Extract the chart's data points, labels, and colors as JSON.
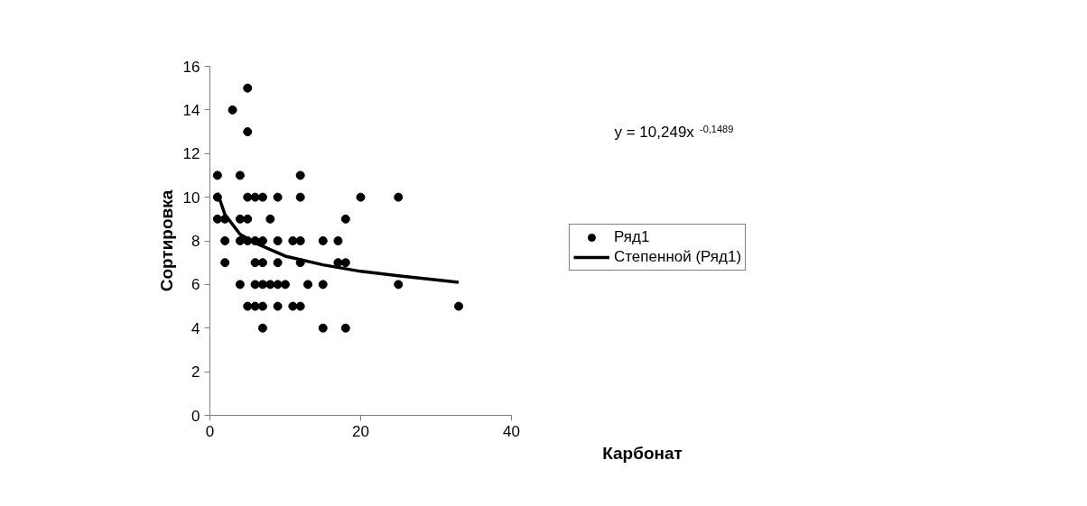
{
  "chart_data": {
    "type": "scatter",
    "xlabel": "Карбонат",
    "ylabel": "Сортировка",
    "xlim": [
      0,
      40
    ],
    "ylim": [
      0,
      16
    ],
    "xticks": [
      0,
      20,
      40
    ],
    "yticks": [
      0,
      2,
      4,
      6,
      8,
      10,
      12,
      14,
      16
    ],
    "grid": false,
    "legend": "right",
    "marker": "circle",
    "annotations": [
      "y = 10,249x$^{-0,1489}$"
    ],
    "series": [
      {
        "name": "Ряд1",
        "color": "#000000",
        "x": [
          5,
          3,
          5,
          1,
          4,
          12,
          1,
          5,
          6,
          7,
          9,
          12,
          20,
          25,
          1,
          2,
          4,
          5,
          8,
          18,
          2,
          4,
          5,
          6,
          7,
          9,
          11,
          12,
          15,
          17,
          2,
          6,
          7,
          9,
          12,
          17,
          18,
          4,
          6,
          7,
          8,
          9,
          10,
          13,
          15,
          25,
          5,
          6,
          7,
          9,
          11,
          12,
          33,
          7,
          15,
          18
        ],
        "values": [
          15,
          14,
          13,
          11,
          11,
          11,
          10,
          10,
          10,
          10,
          10,
          10,
          10,
          10,
          9,
          9,
          9,
          9,
          9,
          9,
          8,
          8,
          8,
          8,
          8,
          8,
          8,
          8,
          8,
          8,
          7,
          7,
          7,
          7,
          7,
          7,
          7,
          6,
          6,
          6,
          6,
          6,
          6,
          6,
          6,
          6,
          5,
          5,
          5,
          5,
          5,
          5,
          5,
          4,
          4,
          4
        ]
      },
      {
        "name": "Степенной (Ряд1)",
        "type": "line",
        "color": "#000000",
        "line_style": "solid",
        "marker": "none",
        "x": [
          1,
          2,
          4,
          6,
          10,
          15,
          20,
          25,
          33
        ],
        "values": [
          10.2,
          9.2,
          8.3,
          7.9,
          7.3,
          6.9,
          6.6,
          6.4,
          6.1
        ]
      }
    ]
  }
}
